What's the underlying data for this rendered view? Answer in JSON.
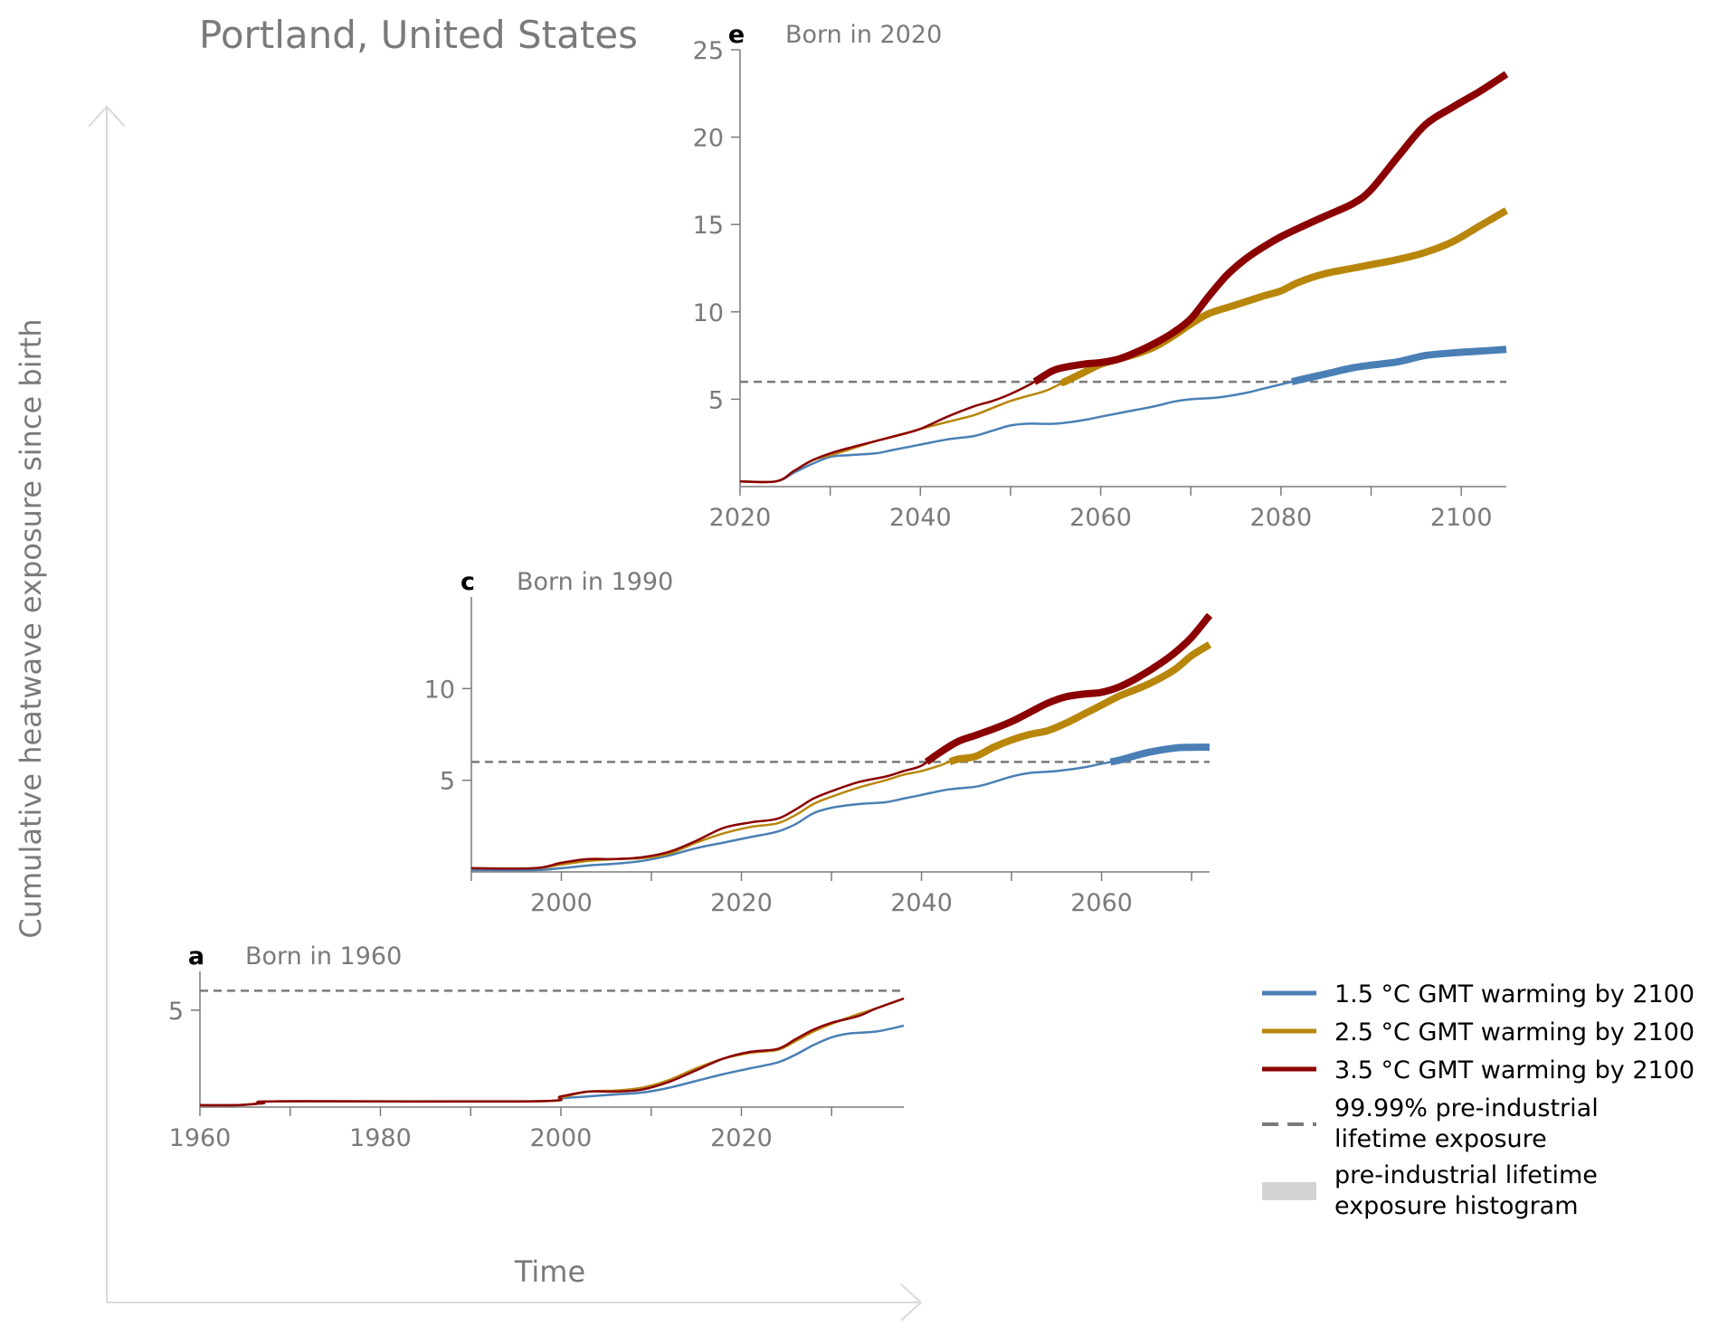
{
  "title": "Portland, United States",
  "ylabel": "Cumulative heatwave exposure since birth",
  "xlabel": "Time",
  "colors": {
    "gmt_1_5": "#4a7fb5",
    "gmt_2_5": "#b8860b",
    "gmt_3_5": "#8b0000",
    "threshold": "#7a7a7a",
    "histogram": "#d3d3d3",
    "axis": "#7a7a7a",
    "arrow": "#d9d9d9"
  },
  "legend": {
    "position": "right",
    "items": [
      {
        "key": "gmt_1_5",
        "kind": "line",
        "label": "1.5 °C GMT warming by 2100"
      },
      {
        "key": "gmt_2_5",
        "kind": "line",
        "label": "2.5 °C GMT warming by 2100"
      },
      {
        "key": "gmt_3_5",
        "kind": "line",
        "label": "3.5 °C GMT warming by 2100"
      },
      {
        "key": "threshold",
        "kind": "dashed",
        "label_lines": [
          "99.99% pre-industrial",
          " lifetime exposure"
        ]
      },
      {
        "key": "histogram",
        "kind": "patch",
        "label_lines": [
          "pre-industrial lifetime",
          " exposure histogram"
        ]
      }
    ]
  },
  "chart_data": [
    {
      "id": "e",
      "type": "line",
      "letter": "e",
      "title": "Born in 2020",
      "xlim": [
        2020,
        2105
      ],
      "ylim": [
        0,
        25
      ],
      "xticks": [
        2020,
        2040,
        2060,
        2080,
        2100
      ],
      "minor_xticks": [
        2030,
        2050,
        2070,
        2090
      ],
      "yticks": [
        5,
        10,
        15,
        20,
        25
      ],
      "threshold": 6,
      "series": [
        {
          "key": "gmt_1_5",
          "name": "1.5 °C GMT warming by 2100",
          "x": [
            2020,
            2024,
            2026,
            2028,
            2030,
            2032,
            2035,
            2037,
            2040,
            2043,
            2046,
            2048,
            2050,
            2052,
            2055,
            2058,
            2060,
            2063,
            2066,
            2068,
            2070,
            2073,
            2076,
            2078,
            2080,
            2082,
            2085,
            2088,
            2090,
            2093,
            2096,
            2099,
            2102,
            2105
          ],
          "y": [
            0.3,
            0.3,
            0.8,
            1.3,
            1.7,
            1.8,
            1.9,
            2.1,
            2.4,
            2.7,
            2.9,
            3.2,
            3.5,
            3.6,
            3.6,
            3.8,
            4.0,
            4.3,
            4.6,
            4.85,
            5.0,
            5.1,
            5.35,
            5.6,
            5.85,
            6.1,
            6.45,
            6.8,
            6.95,
            7.15,
            7.5,
            7.65,
            7.75,
            7.85
          ]
        },
        {
          "key": "gmt_2_5",
          "name": "2.5 °C GMT warming by 2100",
          "x": [
            2020,
            2024,
            2026,
            2028,
            2030,
            2032,
            2035,
            2038,
            2040,
            2043,
            2046,
            2048,
            2050,
            2052,
            2054,
            2056,
            2058,
            2060,
            2062,
            2064,
            2066,
            2068,
            2070,
            2072,
            2075,
            2078,
            2080,
            2082,
            2085,
            2088,
            2090,
            2093,
            2096,
            2099,
            2102,
            2105
          ],
          "y": [
            0.3,
            0.3,
            0.9,
            1.5,
            1.8,
            2.1,
            2.6,
            3.0,
            3.3,
            3.7,
            4.1,
            4.5,
            4.9,
            5.2,
            5.5,
            6.0,
            6.5,
            7.0,
            7.3,
            7.6,
            8.0,
            8.6,
            9.3,
            9.9,
            10.4,
            10.9,
            11.2,
            11.7,
            12.2,
            12.5,
            12.7,
            13.0,
            13.4,
            14.0,
            14.9,
            15.8
          ]
        },
        {
          "key": "gmt_3_5",
          "name": "3.5 °C GMT warming by 2100",
          "x": [
            2020,
            2024,
            2026,
            2028,
            2030,
            2032,
            2035,
            2038,
            2040,
            2043,
            2046,
            2048,
            2050,
            2052,
            2053,
            2055,
            2058,
            2060,
            2062,
            2064,
            2066,
            2068,
            2070,
            2072,
            2074,
            2076,
            2078,
            2080,
            2082,
            2085,
            2088,
            2090,
            2093,
            2096,
            2099,
            2102,
            2105
          ],
          "y": [
            0.3,
            0.3,
            0.9,
            1.5,
            1.9,
            2.2,
            2.6,
            3.0,
            3.3,
            4.0,
            4.6,
            4.9,
            5.3,
            5.8,
            6.1,
            6.7,
            7.0,
            7.1,
            7.3,
            7.7,
            8.2,
            8.8,
            9.6,
            10.9,
            12.1,
            13.0,
            13.7,
            14.3,
            14.8,
            15.5,
            16.2,
            17.0,
            18.9,
            20.7,
            21.7,
            22.6,
            23.6
          ]
        }
      ]
    },
    {
      "id": "c",
      "type": "line",
      "letter": "c",
      "title": "Born in 1990",
      "xlim": [
        1990,
        2072
      ],
      "ylim": [
        0,
        15
      ],
      "xticks": [
        2000,
        2020,
        2040,
        2060
      ],
      "minor_xticks": [
        1990,
        2010,
        2030,
        2050,
        2070
      ],
      "yticks": [
        5,
        10
      ],
      "threshold": 6,
      "series": [
        {
          "key": "gmt_1_5",
          "name": "1.5 °C GMT warming by 2100",
          "x": [
            1990,
            1997,
            2000,
            2003,
            2006,
            2009,
            2012,
            2015,
            2018,
            2021,
            2024,
            2026,
            2028,
            2030,
            2033,
            2036,
            2038,
            2040,
            2043,
            2046,
            2048,
            2050,
            2052,
            2055,
            2058,
            2060,
            2062,
            2065,
            2068,
            2070,
            2072
          ],
          "y": [
            0.1,
            0.1,
            0.2,
            0.35,
            0.45,
            0.6,
            0.9,
            1.3,
            1.6,
            1.9,
            2.2,
            2.6,
            3.2,
            3.5,
            3.7,
            3.8,
            4.0,
            4.2,
            4.5,
            4.65,
            4.9,
            5.2,
            5.4,
            5.5,
            5.7,
            5.9,
            6.1,
            6.5,
            6.75,
            6.8,
            6.8
          ]
        },
        {
          "key": "gmt_2_5",
          "name": "2.5 °C GMT warming by 2100",
          "x": [
            1990,
            1997,
            2000,
            2003,
            2006,
            2009,
            2012,
            2015,
            2018,
            2021,
            2024,
            2026,
            2028,
            2030,
            2033,
            2036,
            2038,
            2040,
            2042,
            2044,
            2046,
            2048,
            2050,
            2052,
            2054,
            2056,
            2058,
            2060,
            2062,
            2065,
            2068,
            2070,
            2072
          ],
          "y": [
            0.2,
            0.2,
            0.4,
            0.6,
            0.7,
            0.75,
            1.0,
            1.6,
            2.1,
            2.45,
            2.65,
            3.1,
            3.7,
            4.1,
            4.6,
            5.0,
            5.3,
            5.5,
            5.8,
            6.15,
            6.3,
            6.8,
            7.2,
            7.5,
            7.7,
            8.1,
            8.6,
            9.1,
            9.6,
            10.2,
            11.0,
            11.8,
            12.4
          ]
        },
        {
          "key": "gmt_3_5",
          "name": "3.5 °C GMT warming by 2100",
          "x": [
            1990,
            1997,
            2000,
            2003,
            2006,
            2009,
            2012,
            2015,
            2018,
            2021,
            2024,
            2026,
            2028,
            2030,
            2033,
            2036,
            2038,
            2040,
            2042,
            2044,
            2046,
            2048,
            2050,
            2052,
            2054,
            2056,
            2058,
            2060,
            2062,
            2064,
            2066,
            2068,
            2070,
            2072
          ],
          "y": [
            0.2,
            0.2,
            0.5,
            0.7,
            0.7,
            0.8,
            1.1,
            1.7,
            2.4,
            2.7,
            2.9,
            3.4,
            4.0,
            4.4,
            4.9,
            5.2,
            5.5,
            5.8,
            6.5,
            7.1,
            7.45,
            7.8,
            8.2,
            8.7,
            9.2,
            9.55,
            9.7,
            9.8,
            10.1,
            10.6,
            11.2,
            11.9,
            12.8,
            14.0
          ]
        }
      ]
    },
    {
      "id": "a",
      "type": "line",
      "letter": "a",
      "title": "Born in 1960",
      "xlim": [
        1960,
        2038
      ],
      "ylim": [
        0,
        7
      ],
      "xticks": [
        1960,
        1980,
        2000,
        2020
      ],
      "minor_xticks": [
        1970,
        1990,
        2010,
        2030
      ],
      "yticks": [
        5
      ],
      "threshold": 6,
      "series": [
        {
          "key": "gmt_1_5",
          "name": "1.5 °C GMT warming by 2100",
          "x": [
            1960,
            1964,
            1967,
            1969,
            1997,
            2000,
            2003,
            2006,
            2009,
            2012,
            2015,
            2018,
            2021,
            2024,
            2026,
            2028,
            2030,
            2032,
            2035,
            2038
          ],
          "y": [
            0.1,
            0.1,
            0.2,
            0.3,
            0.3,
            0.45,
            0.55,
            0.65,
            0.75,
            1.0,
            1.35,
            1.7,
            2.0,
            2.3,
            2.7,
            3.2,
            3.6,
            3.8,
            3.9,
            4.2
          ]
        },
        {
          "key": "gmt_2_5",
          "name": "2.5 °C GMT warming by 2100",
          "x": [
            1960,
            1964,
            1967,
            1969,
            1997,
            2000,
            2003,
            2006,
            2009,
            2012,
            2015,
            2018,
            2021,
            2024,
            2026,
            2028,
            2030,
            2033,
            2035,
            2038
          ],
          "y": [
            0.1,
            0.1,
            0.2,
            0.3,
            0.3,
            0.5,
            0.8,
            0.85,
            1.0,
            1.4,
            2.0,
            2.5,
            2.8,
            2.95,
            3.4,
            3.9,
            4.3,
            4.8,
            5.1,
            5.6
          ]
        },
        {
          "key": "gmt_3_5",
          "name": "3.5 °C GMT warming by 2100",
          "x": [
            1960,
            1964,
            1967,
            1969,
            1997,
            2000,
            2003,
            2006,
            2009,
            2012,
            2015,
            2018,
            2021,
            2024,
            2026,
            2028,
            2030,
            2033,
            2035,
            2038
          ],
          "y": [
            0.1,
            0.1,
            0.2,
            0.3,
            0.3,
            0.55,
            0.8,
            0.8,
            0.9,
            1.3,
            1.9,
            2.5,
            2.85,
            3.0,
            3.5,
            4.0,
            4.35,
            4.7,
            5.1,
            5.6
          ]
        }
      ]
    }
  ]
}
